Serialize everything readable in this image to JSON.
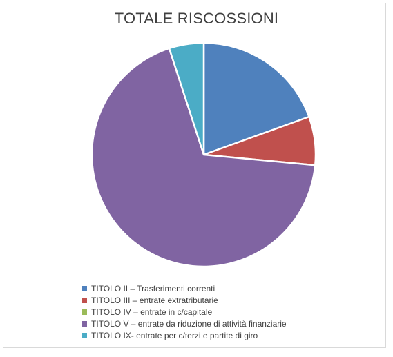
{
  "chart_data": {
    "type": "pie",
    "title": "TOTALE RISCOSSIONI",
    "categories": [
      "TITOLO II – Trasferimenti correnti",
      "TITOLO III – entrate extratributarie",
      "TITOLO IV – entrate in c/capitale",
      "TITOLO V – entrate da riduzione di attività finanziarie",
      "TITOLO IX- entrate per c/terzi e partite di giro"
    ],
    "values": [
      19.5,
      7.0,
      0.0,
      68.5,
      5.0
    ],
    "colors": [
      "#4f81bd",
      "#c0504d",
      "#9bbb59",
      "#8064a2",
      "#4bacc6"
    ],
    "legend_position": "bottom"
  }
}
